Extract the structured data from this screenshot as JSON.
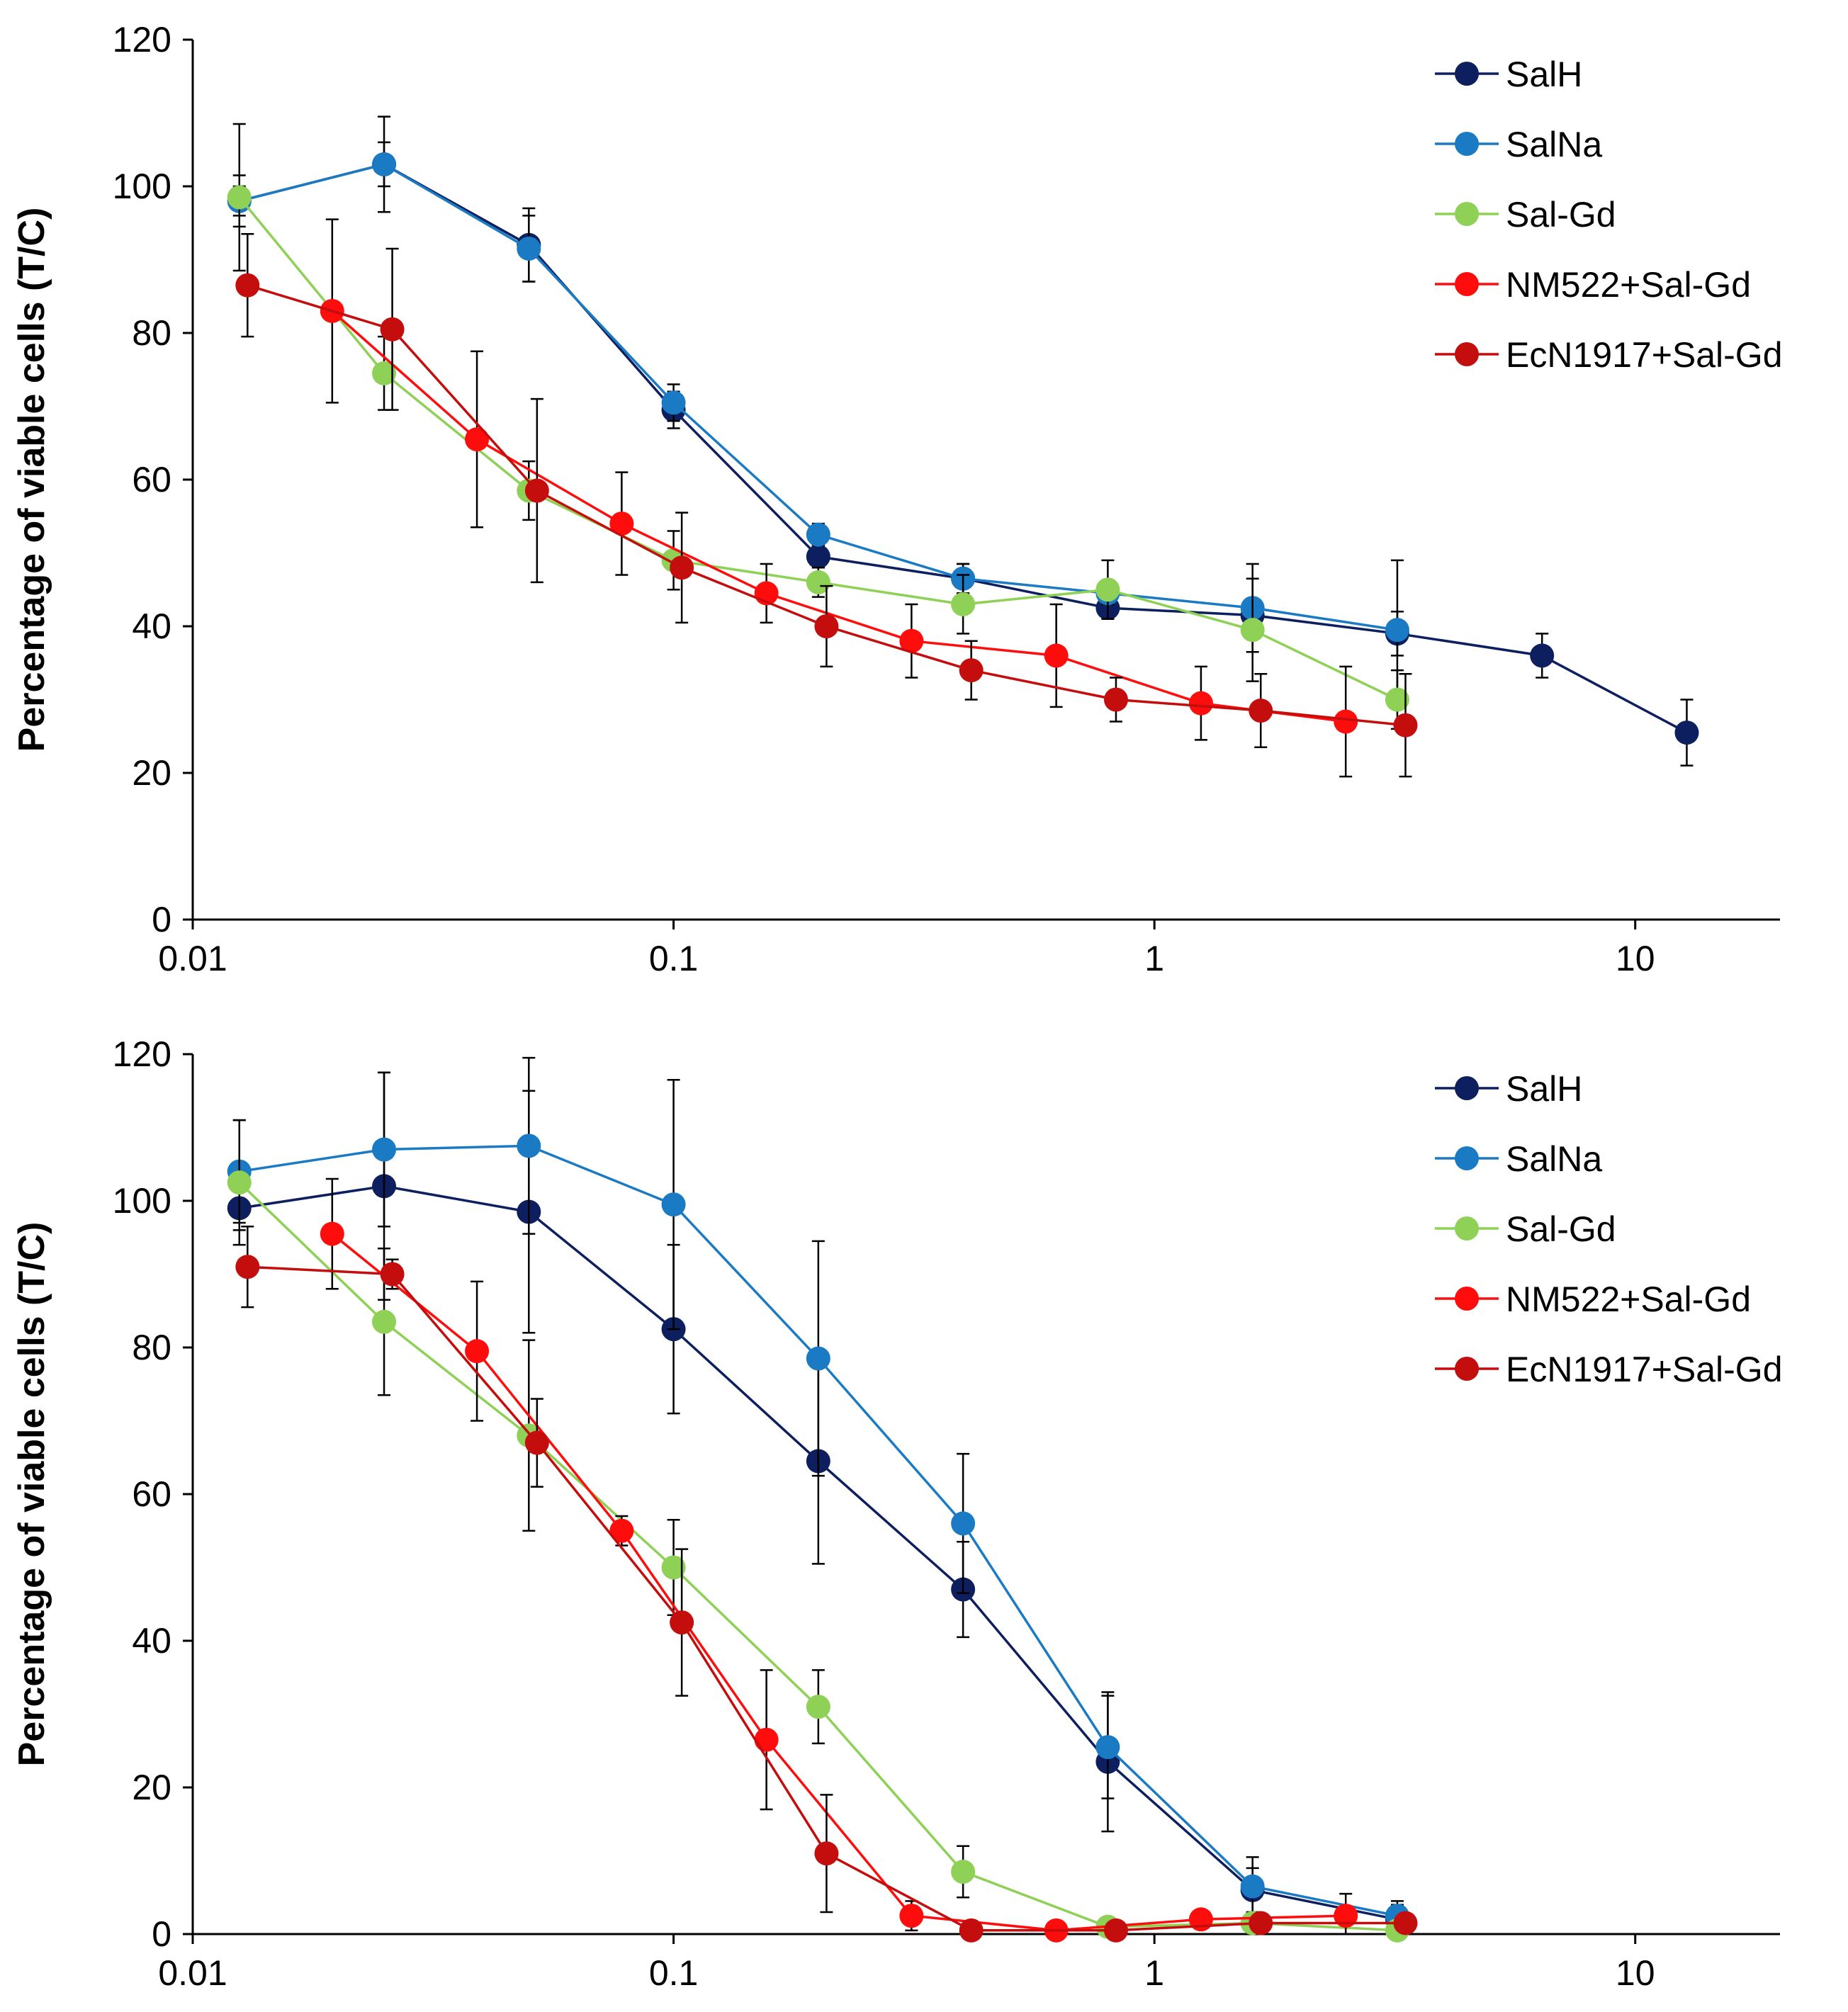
{
  "chart_data": [
    {
      "type": "line",
      "title": "",
      "xlabel": "",
      "ylabel": "Percentage of viable cells (T/C)",
      "xscale": "log",
      "xlim": [
        0.01,
        20
      ],
      "ylim": [
        0,
        120
      ],
      "xticks": [
        0.01,
        0.1,
        1,
        10
      ],
      "xtick_labels": [
        "0.01",
        "0.1",
        "1",
        "10"
      ],
      "yticks": [
        0,
        20,
        40,
        60,
        80,
        100,
        120
      ],
      "ytick_labels": [
        "0",
        "20",
        "40",
        "60",
        "80",
        "100",
        "120"
      ],
      "grid": false,
      "legend_position": "top-right",
      "series": [
        {
          "name": "SalH",
          "color": "#0d1f5e",
          "x": [
            0.0125,
            0.025,
            0.05,
            0.1,
            0.2,
            0.4,
            0.8,
            1.6,
            3.2,
            6.4,
            12.8
          ],
          "values": [
            98,
            103,
            92,
            69.5,
            49.5,
            46.5,
            42.5,
            41.5,
            39,
            36,
            25.5
          ],
          "errors": [
            2,
            3,
            5,
            2.5,
            1.5,
            2,
            1.5,
            2,
            3,
            3,
            4.5
          ]
        },
        {
          "name": "SalNa",
          "color": "#1a7ac4",
          "x": [
            0.0125,
            0.025,
            0.05,
            0.1,
            0.2,
            0.4,
            0.8,
            1.6,
            3.2
          ],
          "values": [
            98,
            103,
            91.5,
            70.5,
            52.5,
            46.5,
            44.5,
            42.5,
            39.5
          ],
          "errors": [
            3.5,
            6.5,
            4.5,
            2.5,
            1.5,
            2,
            1.5,
            6,
            9.5
          ]
        },
        {
          "name": "Sal-Gd",
          "color": "#8ed156",
          "x": [
            0.0125,
            0.025,
            0.05,
            0.1,
            0.2,
            0.4,
            0.8,
            1.6,
            3.2
          ],
          "values": [
            98.5,
            74.5,
            58.5,
            49,
            46,
            43,
            45,
            39.5,
            30
          ],
          "errors": [
            10,
            5,
            4,
            4,
            2,
            4,
            4,
            7,
            4
          ]
        },
        {
          "name": "NM522+Sal-Gd",
          "color": "#ff0d0d",
          "x": [
            0.0195,
            0.039,
            0.078,
            0.156,
            0.3125,
            0.625,
            1.25,
            2.5
          ],
          "values": [
            83,
            65.5,
            54,
            44.5,
            38,
            36,
            29.5,
            27
          ],
          "errors": [
            12.5,
            12,
            7,
            4,
            5,
            7,
            5,
            7.5
          ]
        },
        {
          "name": "EcN1917+Sal-Gd",
          "color": "#c40d0d",
          "x": [
            0.013,
            0.026,
            0.052,
            0.104,
            0.208,
            0.416,
            0.832,
            1.664,
            3.328
          ],
          "values": [
            86.5,
            80.5,
            58.5,
            48,
            40,
            34,
            30,
            28.5,
            26.5
          ],
          "errors": [
            7,
            11,
            12.5,
            7.5,
            5.5,
            4,
            3,
            5,
            7
          ]
        }
      ]
    },
    {
      "type": "line",
      "title": "",
      "xlabel": "",
      "ylabel": "Percentage of viable cells (T/C)",
      "xscale": "log",
      "xlim": [
        0.01,
        20
      ],
      "ylim": [
        0,
        120
      ],
      "xticks": [
        0.01,
        0.1,
        1,
        10
      ],
      "xtick_labels": [
        "0.01",
        "0.1",
        "1",
        "10"
      ],
      "yticks": [
        0,
        20,
        40,
        60,
        80,
        100,
        120
      ],
      "ytick_labels": [
        "0",
        "20",
        "40",
        "60",
        "80",
        "100",
        "120"
      ],
      "grid": false,
      "legend_position": "top-right",
      "series": [
        {
          "name": "SalH",
          "color": "#0d1f5e",
          "x": [
            0.0125,
            0.025,
            0.05,
            0.1,
            0.2,
            0.4,
            0.8,
            1.6,
            3.2
          ],
          "values": [
            99,
            102,
            98.5,
            82.5,
            64.5,
            47,
            23.5,
            6,
            2
          ],
          "errors": [
            3,
            15.5,
            16.5,
            11.5,
            14,
            6.5,
            9.5,
            3,
            2
          ]
        },
        {
          "name": "SalNa",
          "color": "#1a7ac4",
          "x": [
            0.0125,
            0.025,
            0.05,
            0.1,
            0.2,
            0.4,
            0.8,
            1.6,
            3.2
          ],
          "values": [
            104,
            107,
            107.5,
            99.5,
            78.5,
            56,
            25.5,
            6.5,
            2.5
          ],
          "errors": [
            7,
            10.5,
            12,
            17,
            16,
            9.5,
            7,
            4,
            2
          ]
        },
        {
          "name": "Sal-Gd",
          "color": "#8ed156",
          "x": [
            0.0125,
            0.025,
            0.05,
            0.1,
            0.2,
            0.4,
            0.8,
            1.6,
            3.2
          ],
          "values": [
            102.5,
            83.5,
            68,
            50,
            31,
            8.5,
            1,
            1.5,
            0.5
          ],
          "errors": [
            8.5,
            10,
            13,
            6.5,
            5,
            3.5,
            1,
            1,
            1
          ]
        },
        {
          "name": "NM522+Sal-Gd",
          "color": "#ff0d0d",
          "x": [
            0.0195,
            0.039,
            0.078,
            0.156,
            0.3125,
            0.625,
            1.25,
            2.5
          ],
          "values": [
            95.5,
            79.5,
            55,
            26.5,
            2.5,
            0.5,
            2,
            2.5
          ],
          "errors": [
            7.5,
            9.5,
            2,
            9.5,
            2,
            0.5,
            1,
            3
          ]
        },
        {
          "name": "EcN1917+Sal-Gd",
          "color": "#c40d0d",
          "x": [
            0.013,
            0.026,
            0.052,
            0.104,
            0.208,
            0.416,
            0.832,
            1.664,
            3.328
          ],
          "values": [
            91,
            90,
            67,
            42.5,
            11,
            0.5,
            0.5,
            1.5,
            1.5
          ],
          "errors": [
            5.5,
            2,
            6,
            10,
            8,
            1,
            0.5,
            1,
            1
          ]
        }
      ]
    }
  ]
}
